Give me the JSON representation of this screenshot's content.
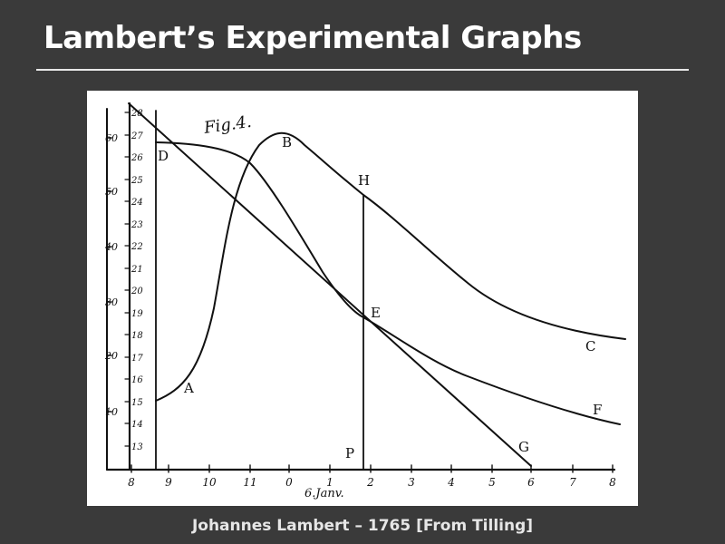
{
  "slide": {
    "title": "Lambert’s Experimental Graphs",
    "caption": "Johannes Lambert – 1765 [From Tilling]"
  },
  "figure": {
    "fig_label": "Fig.4.",
    "x_axis_caption": "6.Janv.",
    "x_ticks": [
      "8",
      "9",
      "10",
      "11",
      "0",
      "1",
      "2",
      "3",
      "4",
      "5",
      "6",
      "7",
      "8"
    ],
    "outer_ticks": [
      "60",
      "50",
      "40",
      "30",
      "20",
      "10"
    ],
    "inner_ticks": [
      "28",
      "27",
      "26",
      "25",
      "24",
      "23",
      "22",
      "21",
      "20",
      "19",
      "18",
      "17",
      "16",
      "15",
      "14",
      "13"
    ],
    "point_labels": {
      "A": "A",
      "B": "B",
      "C": "C",
      "D": "D",
      "E": "E",
      "F": "F",
      "G": "G",
      "H": "H",
      "P": "P"
    }
  }
}
